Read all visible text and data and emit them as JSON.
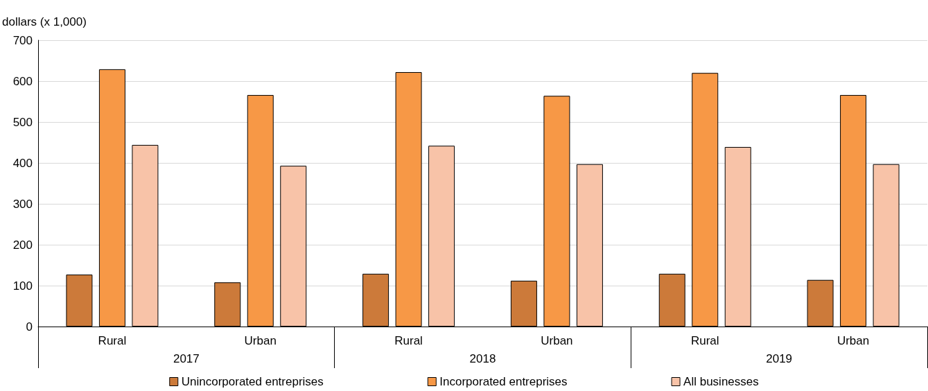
{
  "chart_data": {
    "type": "bar",
    "ylabel": "dollars (x 1,000)",
    "categories": [
      "Rural",
      "Urban",
      "Rural",
      "Urban",
      "Rural",
      "Urban"
    ],
    "series": [
      {
        "name": "Unincorporated entreprises",
        "color": "#cc7a3a",
        "values": [
          127,
          108,
          129,
          112,
          129,
          114
        ]
      },
      {
        "name": "Incorporated entreprises",
        "color": "#f79846",
        "values": [
          629,
          566,
          622,
          564,
          620,
          566
        ]
      },
      {
        "name": "All businesses",
        "color": "#f8c3a8",
        "values": [
          444,
          393,
          442,
          397,
          439,
          397
        ]
      }
    ],
    "annotations": [
      "2017",
      "2018",
      "2019"
    ],
    "ylim": [
      0,
      700
    ],
    "yticks": [
      0,
      100,
      200,
      300,
      400,
      500,
      600,
      700
    ],
    "grid": "y",
    "legend": "bottom"
  }
}
